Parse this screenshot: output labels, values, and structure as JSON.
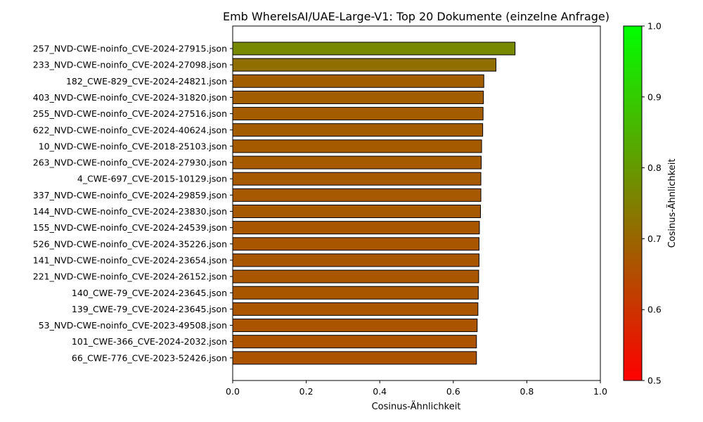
{
  "chart_data": {
    "type": "bar",
    "orientation": "horizontal",
    "title": "Emb WhereIsAI/UAE-Large-V1: Top 20 Dokumente (einzelne Anfrage)",
    "xlabel": "Cosinus-Ähnlichkeit",
    "ylabel": "",
    "xlim": [
      0,
      1.0
    ],
    "x_ticks": [
      "0.0",
      "0.2",
      "0.4",
      "0.6",
      "0.8",
      "1.0"
    ],
    "x_tick_values": [
      0,
      0.2,
      0.4,
      0.6,
      0.8,
      1.0
    ],
    "grid": false,
    "categories": [
      "257_NVD-CWE-noinfo_CVE-2024-27915.json",
      "233_NVD-CWE-noinfo_CVE-2024-27098.json",
      "182_CWE-829_CVE-2024-24821.json",
      "403_NVD-CWE-noinfo_CVE-2024-31820.json",
      "255_NVD-CWE-noinfo_CVE-2024-27516.json",
      "622_NVD-CWE-noinfo_CVE-2024-40624.json",
      "10_NVD-CWE-noinfo_CVE-2018-25103.json",
      "263_NVD-CWE-noinfo_CVE-2024-27930.json",
      "4_CWE-697_CVE-2015-10129.json",
      "337_NVD-CWE-noinfo_CVE-2024-29859.json",
      "144_NVD-CWE-noinfo_CVE-2024-23830.json",
      "155_NVD-CWE-noinfo_CVE-2024-24539.json",
      "526_NVD-CWE-noinfo_CVE-2024-35226.json",
      "141_NVD-CWE-noinfo_CVE-2024-23654.json",
      "221_NVD-CWE-noinfo_CVE-2024-26152.json",
      "140_CWE-79_CVE-2024-23645.json",
      "139_CWE-79_CVE-2024-23645.json",
      "53_NVD-CWE-noinfo_CVE-2023-49508.json",
      "101_CWE-366_CVE-2024-2032.json",
      "66_CWE-776_CVE-2023-52426.json"
    ],
    "values": [
      0.768,
      0.716,
      0.683,
      0.682,
      0.681,
      0.68,
      0.677,
      0.676,
      0.675,
      0.675,
      0.674,
      0.671,
      0.67,
      0.67,
      0.669,
      0.668,
      0.667,
      0.665,
      0.663,
      0.663
    ],
    "colorbar": {
      "label": "Cosinus-Ähnlichkeit",
      "range": [
        0.5,
        1.0
      ],
      "ticks": [
        "0.5",
        "0.6",
        "0.7",
        "0.8",
        "0.9",
        "1.0"
      ],
      "tick_values": [
        0.5,
        0.6,
        0.7,
        0.8,
        0.9,
        1.0
      ],
      "color_low": "#ff0000",
      "color_high": "#00ff00"
    },
    "bar_edge_color": "#000000"
  }
}
